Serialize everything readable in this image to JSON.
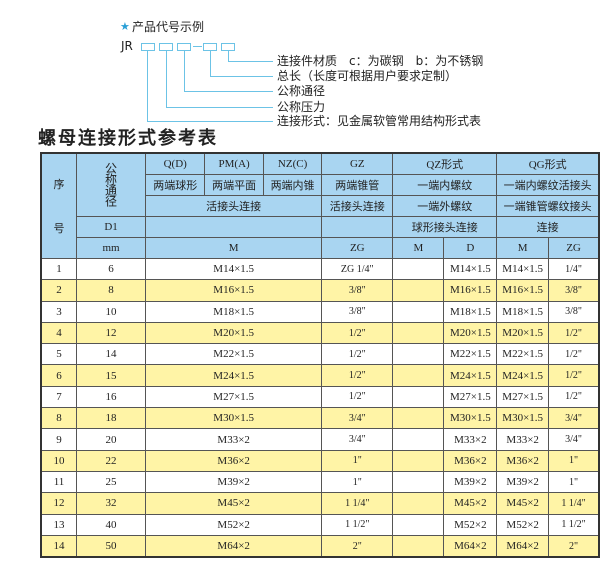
{
  "legend": {
    "star_icon": "star-icon",
    "caption": "产品代号示例",
    "prefix": "JR",
    "labels": [
      "连接件材质　c：为碳钢　b：为不锈钢",
      "总长（长度可根据用户要求定制）",
      "公称通径",
      "公称压力",
      "连接形式：见金属软管常用结构形式表"
    ],
    "line_color": "#6cc3e6"
  },
  "title": "螺母连接形式参考表",
  "table": {
    "header": {
      "seq_top": "序",
      "seq_bottom": "号",
      "dn": "公称通径",
      "codes": [
        "Q(D)",
        "PM(A)",
        "NZ(C)",
        "GZ",
        "QZ形式",
        "QG形式"
      ],
      "forms": [
        "两端球形",
        "两端平面",
        "两端内锥",
        "两端锥管",
        "一端内螺纹",
        "一端内螺纹活接头"
      ],
      "conn": [
        "活接头连接",
        "活接头连接",
        "一端外螺纹",
        "一端锥管螺纹接头"
      ],
      "d1": "D1",
      "conn2": [
        "球形接头连接",
        "连接"
      ],
      "units": [
        "mm",
        "M",
        "ZG",
        "M",
        "D",
        "M",
        "ZG"
      ]
    },
    "rows": [
      [
        "1",
        "6",
        "M14×1.5",
        "ZG 1/4\"",
        "",
        "M14×1.5",
        "M14×1.5",
        "1/4\""
      ],
      [
        "2",
        "8",
        "M16×1.5",
        "3/8\"",
        "",
        "M16×1.5",
        "M16×1.5",
        "3/8\""
      ],
      [
        "3",
        "10",
        "M18×1.5",
        "3/8\"",
        "",
        "M18×1.5",
        "M18×1.5",
        "3/8\""
      ],
      [
        "4",
        "12",
        "M20×1.5",
        "1/2\"",
        "",
        "M20×1.5",
        "M20×1.5",
        "1/2\""
      ],
      [
        "5",
        "14",
        "M22×1.5",
        "1/2\"",
        "",
        "M22×1.5",
        "M22×1.5",
        "1/2\""
      ],
      [
        "6",
        "15",
        "M24×1.5",
        "1/2\"",
        "",
        "M24×1.5",
        "M24×1.5",
        "1/2\""
      ],
      [
        "7",
        "16",
        "M27×1.5",
        "1/2\"",
        "",
        "M27×1.5",
        "M27×1.5",
        "1/2\""
      ],
      [
        "8",
        "18",
        "M30×1.5",
        "3/4\"",
        "",
        "M30×1.5",
        "M30×1.5",
        "3/4\""
      ],
      [
        "9",
        "20",
        "M33×2",
        "3/4\"",
        "",
        "M33×2",
        "M33×2",
        "3/4\""
      ],
      [
        "10",
        "22",
        "M36×2",
        "1\"",
        "",
        "M36×2",
        "M36×2",
        "1\""
      ],
      [
        "11",
        "25",
        "M39×2",
        "1\"",
        "",
        "M39×2",
        "M39×2",
        "1\""
      ],
      [
        "12",
        "32",
        "M45×2",
        "1 1/4\"",
        "",
        "M45×2",
        "M45×2",
        "1 1/4\""
      ],
      [
        "13",
        "40",
        "M52×2",
        "1 1/2\"",
        "",
        "M52×2",
        "M52×2",
        "1 1/2\""
      ],
      [
        "14",
        "50",
        "M64×2",
        "2\"",
        "",
        "M64×2",
        "M64×2",
        "2\""
      ]
    ],
    "colors": {
      "header": "#a9d5f1",
      "alt_row": "#fff4a6"
    }
  }
}
